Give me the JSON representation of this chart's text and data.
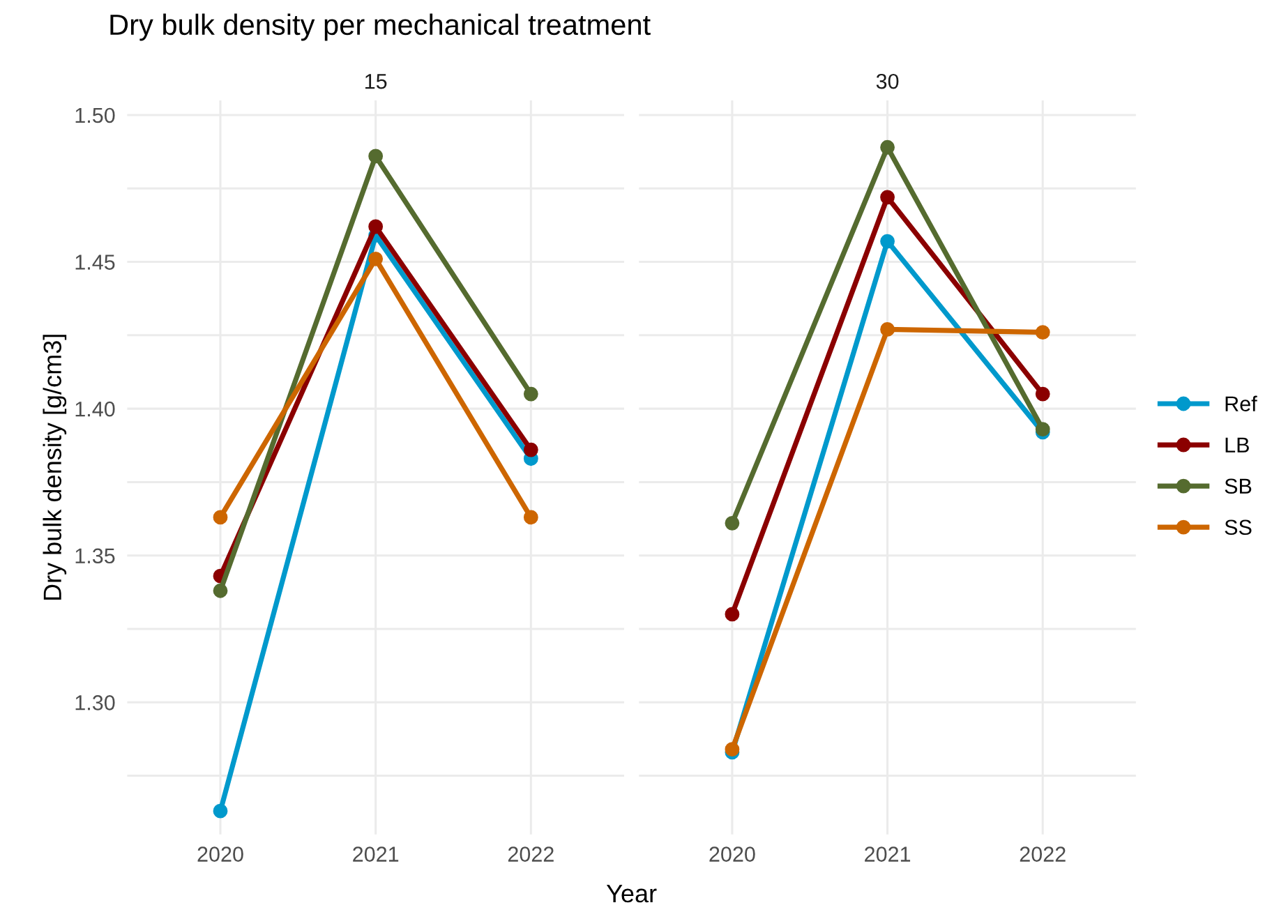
{
  "chart_data": [
    {
      "type": "line",
      "title": "Dry bulk density per mechanical treatment",
      "subtitle": "15",
      "xlabel": "Year",
      "ylabel": "Dry bulk density [g/cm3]",
      "categories": [
        "2020",
        "2021",
        "2022"
      ],
      "series": [
        {
          "name": "Ref",
          "color": "#0099cc",
          "values": [
            1.263,
            1.459,
            1.383
          ]
        },
        {
          "name": "LB",
          "color": "#8b0000",
          "values": [
            1.343,
            1.462,
            1.386
          ]
        },
        {
          "name": "SB",
          "color": "#556b2f",
          "values": [
            1.338,
            1.486,
            1.405
          ]
        },
        {
          "name": "SS",
          "color": "#cd6600",
          "values": [
            1.363,
            1.451,
            1.363
          ]
        }
      ],
      "ylim": [
        1.255,
        1.505
      ],
      "yticks": [
        {
          "value": 1.275,
          "label": null
        },
        {
          "value": 1.3,
          "label": "1.30"
        },
        {
          "value": 1.325,
          "label": null
        },
        {
          "value": 1.35,
          "label": "1.35"
        },
        {
          "value": 1.375,
          "label": null
        },
        {
          "value": 1.4,
          "label": "1.40"
        },
        {
          "value": 1.425,
          "label": null
        },
        {
          "value": 1.45,
          "label": "1.45"
        },
        {
          "value": 1.475,
          "label": null
        },
        {
          "value": 1.5,
          "label": "1.50"
        }
      ],
      "grid": true,
      "marker": "circle",
      "line_style": "solid",
      "legend": "right"
    },
    {
      "type": "line",
      "subtitle": "30",
      "categories": [
        "2020",
        "2021",
        "2022"
      ],
      "series": [
        {
          "color": "#0099cc",
          "values": [
            1.283,
            1.457,
            1.392
          ]
        },
        {
          "color": "#8b0000",
          "values": [
            1.33,
            1.472,
            1.405
          ]
        },
        {
          "color": "#556b2f",
          "values": [
            1.361,
            1.489,
            1.393
          ]
        },
        {
          "color": "#cd6600",
          "values": [
            1.284,
            1.427,
            1.426
          ]
        }
      ],
      "ylim": [
        1.255,
        1.505
      ],
      "yticks": [
        {
          "value": 1.275,
          "label": null
        },
        {
          "value": 1.3,
          "label": null
        },
        {
          "value": 1.325,
          "label": null
        },
        {
          "value": 1.35,
          "label": null
        },
        {
          "value": 1.375,
          "label": null
        },
        {
          "value": 1.4,
          "label": null
        },
        {
          "value": 1.425,
          "label": null
        },
        {
          "value": 1.45,
          "label": null
        },
        {
          "value": 1.475,
          "label": null
        },
        {
          "value": 1.5,
          "label": null
        }
      ],
      "grid": true,
      "marker": "circle",
      "line_style": "solid",
      "tick_labels": "x"
    }
  ]
}
